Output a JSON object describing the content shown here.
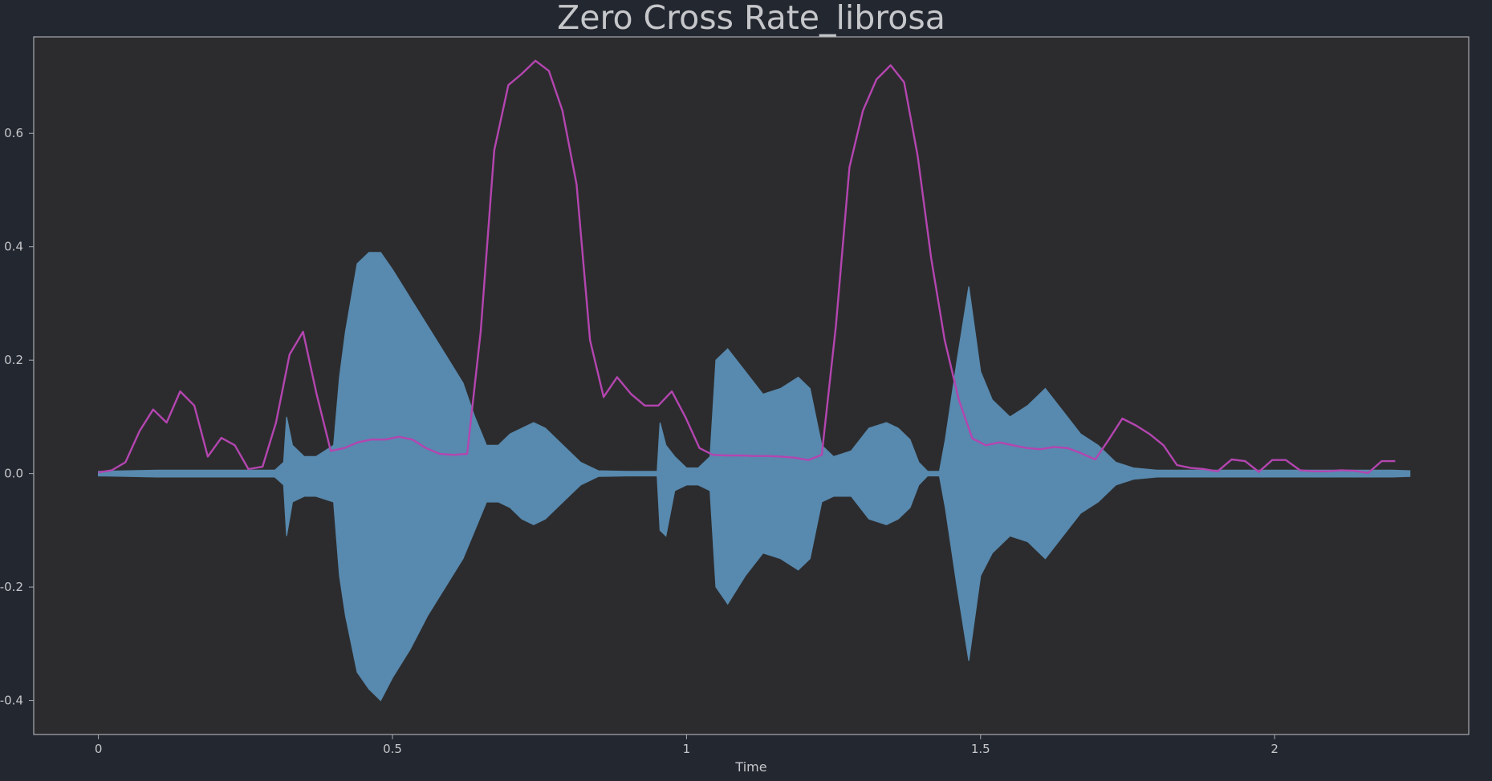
{
  "chart_data": {
    "type": "line",
    "title": "Zero Cross Rate_librosa",
    "xlabel": "Time",
    "ylabel": "",
    "xlim": [
      -0.11,
      2.33
    ],
    "ylim": [
      -0.46,
      0.77
    ],
    "x_ticks": [
      {
        "value": 0,
        "label": "0"
      },
      {
        "value": 0.5,
        "label": "0.5"
      },
      {
        "value": 1,
        "label": "1"
      },
      {
        "value": 1.5,
        "label": "1.5"
      },
      {
        "value": 2,
        "label": "2"
      }
    ],
    "y_ticks": [
      {
        "value": -0.4,
        "label": "-0.4"
      },
      {
        "value": -0.2,
        "label": "-0.2"
      },
      {
        "value": 0.0,
        "label": "0.0"
      },
      {
        "value": 0.2,
        "label": "0.2"
      },
      {
        "value": 0.4,
        "label": "0.4"
      },
      {
        "value": 0.6,
        "label": "0.6"
      }
    ],
    "grid": false,
    "colors": {
      "background": "#232730",
      "plot_area": "#2c2c2e",
      "frame": "#a9abb0",
      "text": "#c6c7ca",
      "waveform": "#5889ae",
      "zcr": "#b445b0"
    },
    "series": [
      {
        "kind": "waveform_envelope",
        "points": [
          [
            0.0,
            0.004,
            -0.004
          ],
          [
            0.05,
            0.005,
            -0.005
          ],
          [
            0.1,
            0.006,
            -0.006
          ],
          [
            0.15,
            0.006,
            -0.006
          ],
          [
            0.2,
            0.006,
            -0.006
          ],
          [
            0.25,
            0.006,
            -0.006
          ],
          [
            0.3,
            0.006,
            -0.006
          ],
          [
            0.315,
            0.02,
            -0.02
          ],
          [
            0.32,
            0.1,
            -0.11
          ],
          [
            0.33,
            0.05,
            -0.05
          ],
          [
            0.35,
            0.03,
            -0.04
          ],
          [
            0.37,
            0.03,
            -0.04
          ],
          [
            0.4,
            0.05,
            -0.05
          ],
          [
            0.41,
            0.17,
            -0.18
          ],
          [
            0.42,
            0.25,
            -0.25
          ],
          [
            0.44,
            0.37,
            -0.35
          ],
          [
            0.46,
            0.39,
            -0.38
          ],
          [
            0.48,
            0.39,
            -0.4
          ],
          [
            0.5,
            0.36,
            -0.36
          ],
          [
            0.53,
            0.31,
            -0.31
          ],
          [
            0.56,
            0.26,
            -0.25
          ],
          [
            0.59,
            0.21,
            -0.2
          ],
          [
            0.62,
            0.16,
            -0.15
          ],
          [
            0.64,
            0.1,
            -0.1
          ],
          [
            0.66,
            0.05,
            -0.05
          ],
          [
            0.68,
            0.05,
            -0.05
          ],
          [
            0.7,
            0.07,
            -0.06
          ],
          [
            0.72,
            0.08,
            -0.08
          ],
          [
            0.74,
            0.09,
            -0.09
          ],
          [
            0.76,
            0.08,
            -0.08
          ],
          [
            0.79,
            0.05,
            -0.05
          ],
          [
            0.82,
            0.02,
            -0.02
          ],
          [
            0.85,
            0.005,
            -0.005
          ],
          [
            0.9,
            0.004,
            -0.004
          ],
          [
            0.95,
            0.004,
            -0.004
          ],
          [
            0.955,
            0.09,
            -0.1
          ],
          [
            0.965,
            0.05,
            -0.11
          ],
          [
            0.98,
            0.03,
            -0.03
          ],
          [
            1.0,
            0.01,
            -0.02
          ],
          [
            1.02,
            0.01,
            -0.02
          ],
          [
            1.04,
            0.03,
            -0.03
          ],
          [
            1.05,
            0.2,
            -0.2
          ],
          [
            1.07,
            0.22,
            -0.23
          ],
          [
            1.1,
            0.18,
            -0.18
          ],
          [
            1.13,
            0.14,
            -0.14
          ],
          [
            1.16,
            0.15,
            -0.15
          ],
          [
            1.19,
            0.17,
            -0.17
          ],
          [
            1.21,
            0.15,
            -0.15
          ],
          [
            1.23,
            0.05,
            -0.05
          ],
          [
            1.25,
            0.03,
            -0.04
          ],
          [
            1.28,
            0.04,
            -0.04
          ],
          [
            1.31,
            0.08,
            -0.08
          ],
          [
            1.34,
            0.09,
            -0.09
          ],
          [
            1.36,
            0.08,
            -0.08
          ],
          [
            1.38,
            0.06,
            -0.06
          ],
          [
            1.395,
            0.02,
            -0.02
          ],
          [
            1.41,
            0.004,
            -0.004
          ],
          [
            1.43,
            0.004,
            -0.004
          ],
          [
            1.44,
            0.06,
            -0.06
          ],
          [
            1.46,
            0.2,
            -0.2
          ],
          [
            1.48,
            0.33,
            -0.33
          ],
          [
            1.5,
            0.18,
            -0.18
          ],
          [
            1.52,
            0.13,
            -0.14
          ],
          [
            1.55,
            0.1,
            -0.11
          ],
          [
            1.58,
            0.12,
            -0.12
          ],
          [
            1.61,
            0.15,
            -0.15
          ],
          [
            1.64,
            0.11,
            -0.11
          ],
          [
            1.67,
            0.07,
            -0.07
          ],
          [
            1.7,
            0.05,
            -0.05
          ],
          [
            1.73,
            0.02,
            -0.02
          ],
          [
            1.76,
            0.01,
            -0.01
          ],
          [
            1.8,
            0.006,
            -0.006
          ],
          [
            1.9,
            0.006,
            -0.006
          ],
          [
            2.0,
            0.006,
            -0.006
          ],
          [
            2.1,
            0.006,
            -0.006
          ],
          [
            2.2,
            0.006,
            -0.006
          ],
          [
            2.23,
            0.005,
            -0.005
          ]
        ]
      },
      {
        "kind": "zcr",
        "points": [
          [
            0.0,
            0.002
          ],
          [
            0.023,
            0.006
          ],
          [
            0.046,
            0.02
          ],
          [
            0.07,
            0.075
          ],
          [
            0.093,
            0.113
          ],
          [
            0.116,
            0.09
          ],
          [
            0.139,
            0.145
          ],
          [
            0.163,
            0.12
          ],
          [
            0.186,
            0.03
          ],
          [
            0.209,
            0.063
          ],
          [
            0.232,
            0.05
          ],
          [
            0.255,
            0.008
          ],
          [
            0.279,
            0.012
          ],
          [
            0.302,
            0.09
          ],
          [
            0.325,
            0.21
          ],
          [
            0.348,
            0.25
          ],
          [
            0.371,
            0.14
          ],
          [
            0.395,
            0.04
          ],
          [
            0.418,
            0.045
          ],
          [
            0.441,
            0.055
          ],
          [
            0.464,
            0.06
          ],
          [
            0.488,
            0.06
          ],
          [
            0.511,
            0.065
          ],
          [
            0.534,
            0.06
          ],
          [
            0.557,
            0.045
          ],
          [
            0.58,
            0.035
          ],
          [
            0.604,
            0.033
          ],
          [
            0.627,
            0.035
          ],
          [
            0.65,
            0.25
          ],
          [
            0.673,
            0.57
          ],
          [
            0.697,
            0.685
          ],
          [
            0.72,
            0.705
          ],
          [
            0.743,
            0.728
          ],
          [
            0.766,
            0.71
          ],
          [
            0.789,
            0.64
          ],
          [
            0.813,
            0.51
          ],
          [
            0.836,
            0.235
          ],
          [
            0.859,
            0.135
          ],
          [
            0.882,
            0.17
          ],
          [
            0.906,
            0.14
          ],
          [
            0.929,
            0.12
          ],
          [
            0.952,
            0.12
          ],
          [
            0.975,
            0.145
          ],
          [
            0.998,
            0.1
          ],
          [
            1.022,
            0.045
          ],
          [
            1.045,
            0.033
          ],
          [
            1.068,
            0.032
          ],
          [
            1.091,
            0.032
          ],
          [
            1.114,
            0.031
          ],
          [
            1.138,
            0.031
          ],
          [
            1.161,
            0.03
          ],
          [
            1.184,
            0.028
          ],
          [
            1.207,
            0.024
          ],
          [
            1.23,
            0.033
          ],
          [
            1.254,
            0.26
          ],
          [
            1.277,
            0.54
          ],
          [
            1.3,
            0.64
          ],
          [
            1.323,
            0.695
          ],
          [
            1.347,
            0.72
          ],
          [
            1.37,
            0.69
          ],
          [
            1.393,
            0.56
          ],
          [
            1.416,
            0.38
          ],
          [
            1.439,
            0.235
          ],
          [
            1.463,
            0.13
          ],
          [
            1.486,
            0.062
          ],
          [
            1.509,
            0.05
          ],
          [
            1.532,
            0.055
          ],
          [
            1.555,
            0.05
          ],
          [
            1.579,
            0.045
          ],
          [
            1.602,
            0.043
          ],
          [
            1.625,
            0.047
          ],
          [
            1.648,
            0.045
          ],
          [
            1.671,
            0.036
          ],
          [
            1.695,
            0.025
          ],
          [
            1.718,
            0.06
          ],
          [
            1.741,
            0.097
          ],
          [
            1.764,
            0.085
          ],
          [
            1.787,
            0.07
          ],
          [
            1.811,
            0.05
          ],
          [
            1.834,
            0.015
          ],
          [
            1.857,
            0.01
          ],
          [
            1.88,
            0.008
          ],
          [
            1.903,
            0.004
          ],
          [
            1.927,
            0.025
          ],
          [
            1.95,
            0.022
          ],
          [
            1.973,
            0.003
          ],
          [
            1.996,
            0.024
          ],
          [
            2.019,
            0.024
          ],
          [
            2.043,
            0.006
          ],
          [
            2.066,
            0.004
          ],
          [
            2.089,
            0.004
          ],
          [
            2.112,
            0.006
          ],
          [
            2.135,
            0.005
          ],
          [
            2.159,
            0.001
          ],
          [
            2.182,
            0.022
          ],
          [
            2.205,
            0.022
          ]
        ]
      }
    ]
  }
}
